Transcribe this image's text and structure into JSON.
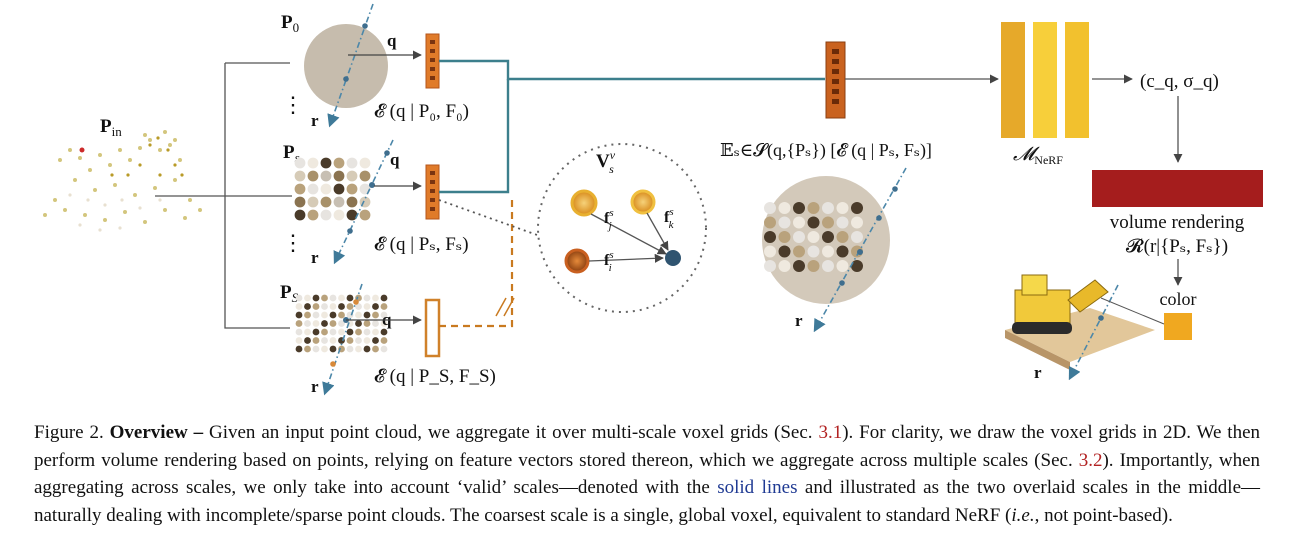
{
  "figure": {
    "labels": {
      "p0": "P",
      "p0_sub": "0",
      "ps": "P",
      "ps_sub": "s",
      "pS": "P",
      "pS_sub": "S",
      "pin": "P",
      "pin_sub": "in",
      "vs": "V",
      "vs_sup": "v",
      "vs_sub": "s",
      "q": "q",
      "r": "r",
      "enc_p0": "𝓔 (q | P₀, F₀)",
      "enc_ps": "𝓔 (q | Pₛ, Fₛ)",
      "enc_pS": "𝓔 (q | P_S, F_S)",
      "expect": "𝔼ₛ∈𝓢(q,{Pₛ}) [𝓔 (q | Pₛ, Fₛ)]",
      "mnerf": "𝓜",
      "mnerf_sub": "NeRF",
      "output": "(c_q, σ_q)",
      "volume_rendering": "volume rendering",
      "render_eq": "𝓡(r|{Pₛ, Fₛ})",
      "color": "color",
      "fj": "f",
      "fj_sup": "s",
      "fj_sub": "j",
      "fk": "f",
      "fk_sup": "s",
      "fk_sub": "k",
      "fi": "f",
      "fi_sup": "s",
      "fi_sub": "i",
      "dots": "⋮"
    },
    "colors": {
      "teal_line": "#3c7f8c",
      "orange_feature": "#e07b2a",
      "dark_orange_feature": "#b5561b",
      "mnerf_yellow": "#f2c12e",
      "volume_red": "#a51d1d",
      "color_box": "#f0a820",
      "ray_blue": "#4c87a9",
      "dashed_orange": "#c97a20"
    }
  },
  "caption": {
    "figure_number": "Figure 2.",
    "title": "Overview –",
    "part1": " Given an input point cloud, we aggregate it over multi-scale voxel grids (Sec. ",
    "ref1": "3.1",
    "part2": "). For clarity, we draw the voxel grids in 2D. We then perform volume rendering based on points, relying on feature vectors stored thereon, which we aggregate across multiple scales (Sec. ",
    "ref2": "3.2",
    "part3": "). Importantly, when aggregating across scales, we only take into account ‘valid’ scales—denoted with the ",
    "solid_lines": "solid lines",
    "part4": " and illustrated as the two overlaid scales in the middle—naturally dealing with incomplete/sparse point clouds. The coarsest scale is a single, global voxel, equivalent to standard NeRF (",
    "ie": "i.e.",
    "part5": ", not point-based)."
  }
}
